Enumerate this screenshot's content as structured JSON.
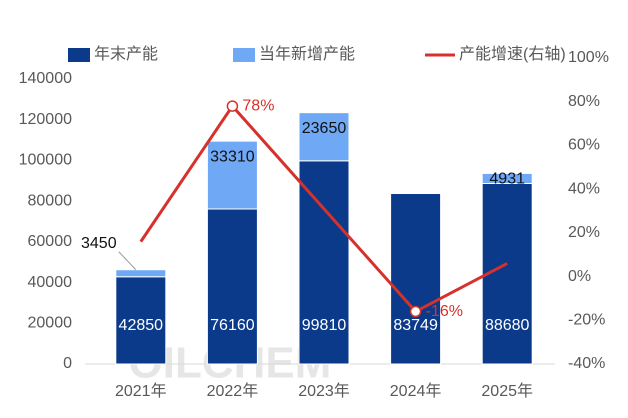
{
  "chart_data": {
    "type": "bar",
    "stacked": true,
    "categories": [
      "2021年",
      "2022年",
      "2023年",
      "2024年",
      "2025年"
    ],
    "series": [
      {
        "name": "年末产能",
        "color": "#0b3a8a",
        "values": [
          42850,
          76160,
          99810,
          83749,
          88680
        ]
      },
      {
        "name": "当年新增产能",
        "color": "#6fa8f5",
        "values": [
          3450,
          33310,
          23650,
          null,
          4931
        ]
      },
      {
        "name": "产能增速(右轴)",
        "type": "line",
        "axis": "y2",
        "color": "#d6312b",
        "values": [
          16,
          78,
          31,
          -16,
          6
        ],
        "value_labels": [
          null,
          "78%",
          null,
          "-16%",
          null
        ]
      }
    ],
    "ylim": [
      0,
      140000
    ],
    "yticks": [
      0,
      20000,
      40000,
      60000,
      80000,
      100000,
      120000,
      140000
    ],
    "y2lim": [
      -40,
      100
    ],
    "y2ticks": [
      {
        "value": -40,
        "label": "-40%"
      },
      {
        "value": -20,
        "label": "-20%"
      },
      {
        "value": 0,
        "label": "0%"
      },
      {
        "value": 20,
        "label": "20%"
      },
      {
        "value": 40,
        "label": "40%"
      },
      {
        "value": 60,
        "label": "60%"
      },
      {
        "value": 80,
        "label": "80%"
      },
      {
        "value": 100,
        "label": "100%"
      }
    ],
    "legend": "top",
    "watermark": "OILCHEM"
  }
}
